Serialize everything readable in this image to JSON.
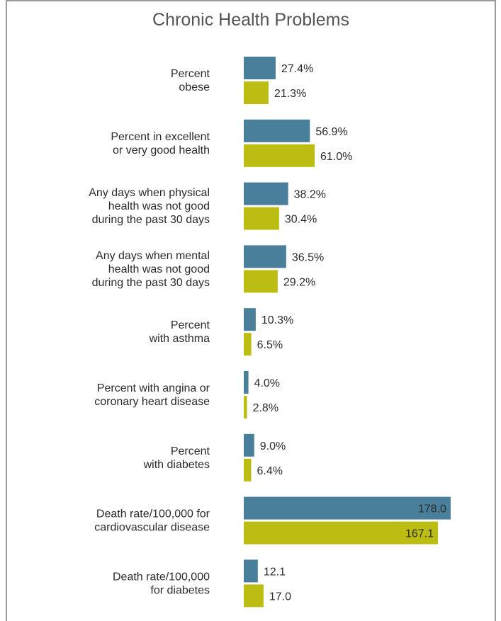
{
  "chart_data": {
    "type": "bar",
    "orientation": "horizontal",
    "title": "Chronic Health Problems",
    "categories": [
      [
        "Percent",
        "obese"
      ],
      [
        "Percent in excellent",
        "or very good health"
      ],
      [
        "Any days when physical",
        "health was not good",
        "during the past 30 days"
      ],
      [
        "Any days when mental",
        "health was not good",
        "during the past 30 days"
      ],
      [
        "Percent",
        "with asthma"
      ],
      [
        "Percent with angina or",
        "coronary heart disease"
      ],
      [
        "Percent",
        "with diabetes"
      ],
      [
        "Death rate/100,000 for",
        "cardiovascular disease"
      ],
      [
        "Death rate/100,000",
        "for diabetes"
      ]
    ],
    "series": [
      {
        "color": "#4a7f9b",
        "values": [
          27.4,
          56.9,
          38.2,
          36.5,
          10.3,
          4.0,
          9.0,
          178.0,
          12.1
        ],
        "labels": [
          "27.4%",
          "56.9%",
          "38.2%",
          "36.5%",
          "10.3%",
          "4.0%",
          "9.0%",
          "178.0",
          "12.1"
        ]
      },
      {
        "color": "#bcbd12",
        "values": [
          21.3,
          61.0,
          30.4,
          29.2,
          6.5,
          2.8,
          6.4,
          167.1,
          17.0
        ],
        "labels": [
          "21.3%",
          "61.0%",
          "30.4%",
          "29.2%",
          "6.5%",
          "2.8%",
          "6.4%",
          "167.1",
          "17.0"
        ]
      }
    ]
  }
}
